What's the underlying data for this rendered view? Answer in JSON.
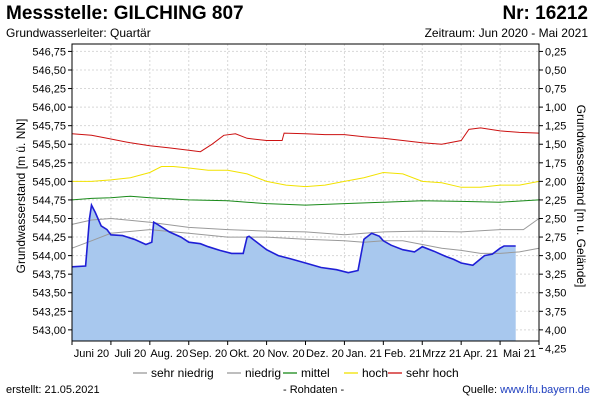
{
  "header": {
    "title": "Messstelle: GILCHING 807",
    "nr": "Nr: 16212",
    "aquifer": "Grundwasserleiter: Quartär",
    "period": "Zeitraum: Jun 2020 - Mai 2021"
  },
  "footer": {
    "created": "erstellt:  21.05.2021",
    "raw": "- Rohdaten -",
    "source_label": "Quelle: ",
    "source_url": "www.lfu.bayern.de"
  },
  "colors": {
    "fill": "#a8c8ee",
    "measure": "#1f1fd6",
    "sehr_niedrig": "#9a9a9a",
    "niedrig": "#9a9a9a",
    "mittel": "#1a8a1a",
    "hoch": "#f2e200",
    "sehr_hoch": "#cc1111",
    "grid": "#d8d8d8"
  },
  "chart_data": {
    "type": "line",
    "ylabel": "Grundwasserstand [m ü. NN]",
    "ylabel_right": "Grundwasserstand [m u. Gelände]",
    "ylim": [
      542.85,
      546.85
    ],
    "yticks": [
      "543,00",
      "543,25",
      "543,50",
      "543,75",
      "544,00",
      "544,25",
      "544,50",
      "544,75",
      "545,00",
      "545,25",
      "545,50",
      "545,75",
      "546,00",
      "546,25",
      "546,50",
      "546,75"
    ],
    "yticks_values": [
      543.0,
      543.25,
      543.5,
      543.75,
      544.0,
      544.25,
      544.5,
      544.75,
      545.0,
      545.25,
      545.5,
      545.75,
      546.0,
      546.25,
      546.5,
      546.75
    ],
    "right_axis_offset": 547.0,
    "yticks_right": [
      "0,25",
      "0,50",
      "0,75",
      "1,00",
      "1,25",
      "1,50",
      "1,75",
      "2,00",
      "2,25",
      "2,50",
      "2,75",
      "3,00",
      "3,25",
      "3,50",
      "3,75",
      "4,00",
      "4,25"
    ],
    "yticks_right_values": [
      0.25,
      0.5,
      0.75,
      1.0,
      1.25,
      1.5,
      1.75,
      2.0,
      2.25,
      2.5,
      2.75,
      3.0,
      3.25,
      3.5,
      3.75,
      4.0,
      4.25
    ],
    "xlim": [
      0,
      12
    ],
    "xticks": [
      "Juni 20",
      "Juli 20",
      "Aug. 20",
      "Sep. 20",
      "Okt. 20",
      "Nov. 20",
      "Dez. 20",
      "Jan. 21",
      "Feb. 21",
      "Mrzz 21",
      "Apr. 21",
      "Mai 21"
    ],
    "xticks_values": [
      0.5,
      1.5,
      2.5,
      3.5,
      4.5,
      5.5,
      6.5,
      7.5,
      8.5,
      9.5,
      10.5,
      11.5
    ],
    "legend": [
      "sehr niedrig",
      "niedrig",
      "mittel",
      "hoch",
      "sehr hoch"
    ],
    "measurement": {
      "name": "Grundwasserstand",
      "x": [
        0.0,
        0.35,
        0.45,
        0.5,
        0.6,
        0.75,
        0.9,
        1.0,
        1.3,
        1.6,
        1.9,
        2.05,
        2.1,
        2.2,
        2.5,
        2.8,
        3.0,
        3.3,
        3.5,
        3.8,
        4.1,
        4.4,
        4.5,
        4.55,
        4.7,
        5.0,
        5.3,
        5.6,
        6.0,
        6.4,
        6.8,
        7.1,
        7.35,
        7.5,
        7.6,
        7.7,
        7.9,
        8.0,
        8.2,
        8.5,
        8.8,
        9.0,
        9.3,
        9.6,
        9.8,
        10.0,
        10.3,
        10.6,
        10.8,
        11.0,
        11.1,
        11.3,
        11.4
      ],
      "y": [
        543.85,
        543.86,
        544.5,
        544.68,
        544.58,
        544.4,
        544.35,
        544.28,
        544.27,
        544.22,
        544.15,
        544.18,
        544.45,
        544.42,
        544.32,
        544.25,
        544.18,
        544.16,
        544.12,
        544.07,
        544.03,
        544.03,
        544.25,
        544.26,
        544.2,
        544.08,
        544.0,
        543.96,
        543.9,
        543.84,
        543.81,
        543.77,
        543.8,
        544.22,
        544.26,
        544.3,
        544.26,
        544.2,
        544.14,
        544.08,
        544.05,
        544.12,
        544.06,
        543.99,
        543.95,
        543.9,
        543.87,
        544.0,
        544.02,
        544.1,
        544.13,
        544.13,
        544.13
      ]
    },
    "series": [
      {
        "name": "sehr niedrig",
        "x": [
          0,
          0.5,
          1,
          2,
          3,
          4,
          5,
          6,
          7,
          7.5,
          8,
          8.5,
          9,
          9.5,
          10,
          10.5,
          11,
          11.5,
          12
        ],
        "y": [
          544.1,
          544.2,
          544.3,
          544.35,
          544.3,
          544.25,
          544.25,
          544.22,
          544.2,
          544.18,
          544.2,
          544.2,
          544.15,
          544.1,
          544.07,
          544.03,
          544.03,
          544.05,
          544.1
        ]
      },
      {
        "name": "niedrig",
        "x": [
          0,
          0.5,
          1,
          2,
          3,
          4,
          5,
          6,
          7,
          7.5,
          8,
          9,
          10,
          11,
          11.6,
          12
        ],
        "y": [
          544.42,
          544.48,
          544.5,
          544.45,
          544.38,
          544.35,
          544.33,
          544.32,
          544.28,
          544.3,
          544.32,
          544.33,
          544.32,
          544.35,
          544.35,
          544.5
        ]
      },
      {
        "name": "mittel",
        "x": [
          0,
          0.5,
          1,
          1.5,
          2,
          3,
          4,
          4.5,
          5,
          6,
          7,
          8,
          9,
          10,
          11,
          12
        ],
        "y": [
          544.75,
          544.77,
          544.78,
          544.8,
          544.78,
          544.75,
          544.74,
          544.72,
          544.7,
          544.68,
          544.7,
          544.72,
          544.74,
          544.73,
          544.72,
          544.75
        ]
      },
      {
        "name": "hoch",
        "x": [
          0,
          0.5,
          1,
          1.5,
          2,
          2.3,
          2.6,
          3,
          3.5,
          4,
          4.5,
          5,
          5.5,
          6,
          6.5,
          7,
          7.5,
          8,
          8.5,
          9,
          9.5,
          10,
          10.5,
          11,
          11.5,
          12
        ],
        "y": [
          545.0,
          545.0,
          545.02,
          545.05,
          545.12,
          545.2,
          545.2,
          545.18,
          545.15,
          545.15,
          545.1,
          545.0,
          544.95,
          544.93,
          544.95,
          545.0,
          545.05,
          545.12,
          545.1,
          545.0,
          544.98,
          544.92,
          544.92,
          544.95,
          544.95,
          545.0
        ]
      },
      {
        "name": "sehr hoch",
        "x": [
          0,
          0.5,
          1,
          1.5,
          2,
          2.5,
          3,
          3.3,
          3.6,
          3.9,
          4.2,
          4.5,
          5,
          5.4,
          5.45,
          6,
          6.5,
          7,
          7.5,
          8,
          8.5,
          9,
          9.5,
          10,
          10.2,
          10.5,
          11,
          11.5,
          12
        ],
        "y": [
          545.64,
          545.62,
          545.57,
          545.52,
          545.48,
          545.45,
          545.42,
          545.4,
          545.5,
          545.62,
          545.64,
          545.58,
          545.55,
          545.55,
          545.65,
          545.64,
          545.63,
          545.63,
          545.6,
          545.58,
          545.55,
          545.52,
          545.5,
          545.55,
          545.7,
          545.72,
          545.68,
          545.66,
          545.65
        ]
      }
    ]
  }
}
